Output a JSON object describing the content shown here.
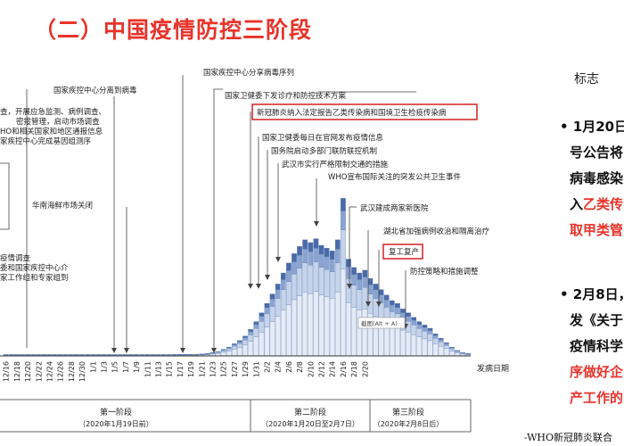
{
  "title": "（二）中国疫情防控三阶段",
  "side_panel": {
    "heading": "标志",
    "bullet1": {
      "line1": "• 1月20日",
      "line2": "号公告将",
      "line3": "病毒感染",
      "line4_prefix": "入",
      "line4_red": "乙类传",
      "line5_red": "取甲类管"
    },
    "bullet2": {
      "line1": "• 2月8日，",
      "line2": "发《关于",
      "line3": "疫情科学",
      "line4_red": "序做好企",
      "line5_red": "产工作的"
    }
  },
  "footer": "-WHO新冠肺炎联合",
  "chart_data": {
    "type": "bar",
    "x_axis_label": "发病日期",
    "tick_labels": [
      "12/16",
      "12/18",
      "12/20",
      "12/22",
      "12/24",
      "12/26",
      "12/28",
      "12/30",
      "1/1",
      "1/3",
      "1/5",
      "1/7",
      "1/9",
      "1/11",
      "1/13",
      "1/15",
      "1/17",
      "1/19",
      "1/21",
      "1/23",
      "1/25",
      "1/27",
      "1/29",
      "1/31",
      "2/2",
      "2/4",
      "2/6",
      "2/8",
      "2/10",
      "2/12",
      "2/14",
      "2/16",
      "2/18",
      "2/20"
    ],
    "daily_cases": [
      1,
      1,
      1,
      1,
      1,
      1,
      1,
      1,
      1,
      1,
      1,
      1,
      1,
      1,
      1,
      1,
      1,
      1,
      1,
      1,
      1,
      1,
      1,
      1,
      1,
      1,
      1,
      1,
      1,
      1,
      1,
      2,
      2,
      2,
      2,
      2,
      3,
      4,
      6,
      8,
      12,
      16,
      22,
      28,
      36,
      48,
      62,
      78,
      95,
      112,
      130,
      150,
      168,
      185,
      198,
      210,
      205,
      212,
      200,
      195,
      190,
      210,
      285,
      175,
      160,
      150,
      155,
      140,
      130,
      120,
      110,
      100,
      95,
      85,
      78,
      70,
      62,
      56,
      50,
      40,
      32,
      24,
      16,
      10,
      6,
      4
    ],
    "annotations": [
      {
        "text": "国家疾控中心分离到病毒"
      },
      {
        "text": "国家疾控中心分享病毒序列"
      },
      {
        "text": "国家卫健委下发诊疗和防控技术方案"
      },
      {
        "text": "新冠肺炎纳入法定报告乙类传染病和国境卫生检疫传染病",
        "boxed": true
      },
      {
        "text": "国家卫健委每日在官网发布疫情信息"
      },
      {
        "text": "国务院启动多部门联防联控机制"
      },
      {
        "text": "武汉市实行严格限制交通的措施"
      },
      {
        "text": "WHO宣布国际关注的突发公共卫生事件"
      },
      {
        "text": "武汉建成两家新医院"
      },
      {
        "text": "湖北省加强病例收治和隔离治疗"
      },
      {
        "text": "复工复产",
        "boxed": true
      },
      {
        "text": "防控策略和措施调整"
      },
      {
        "text": "华南海鲜市场关闭"
      },
      {
        "text": "截图(Alt + A)"
      }
    ],
    "left_clipped_text": [
      {
        "text": "查，开展应急监测、病例调查、"
      },
      {
        "text": "密接管理，启动市场调查"
      },
      {
        "text": "HO和相关国家和地区通报信息"
      },
      {
        "text": "家疾控中心完成基因组测序"
      },
      {
        "text": "疫情调查"
      },
      {
        "text": "委和国家疾控中心介"
      },
      {
        "text": "家工作组和专家组到"
      }
    ],
    "stages": [
      {
        "name": "第一阶段",
        "range": "（2020年1月19日前）"
      },
      {
        "name": "第二阶段",
        "range": "（2020年1月20日至2月7日）"
      },
      {
        "name": "第三阶段",
        "range": "（2020年2月8日后）"
      }
    ],
    "colors": {
      "bar_dark": "#4a6aa8",
      "bar_mid": "#8aa4d0",
      "bar_light": "#c5d4ea",
      "bar_lightest": "#e4ebf5",
      "box_red": "#d32020",
      "title_red": "#e8332a"
    }
  }
}
